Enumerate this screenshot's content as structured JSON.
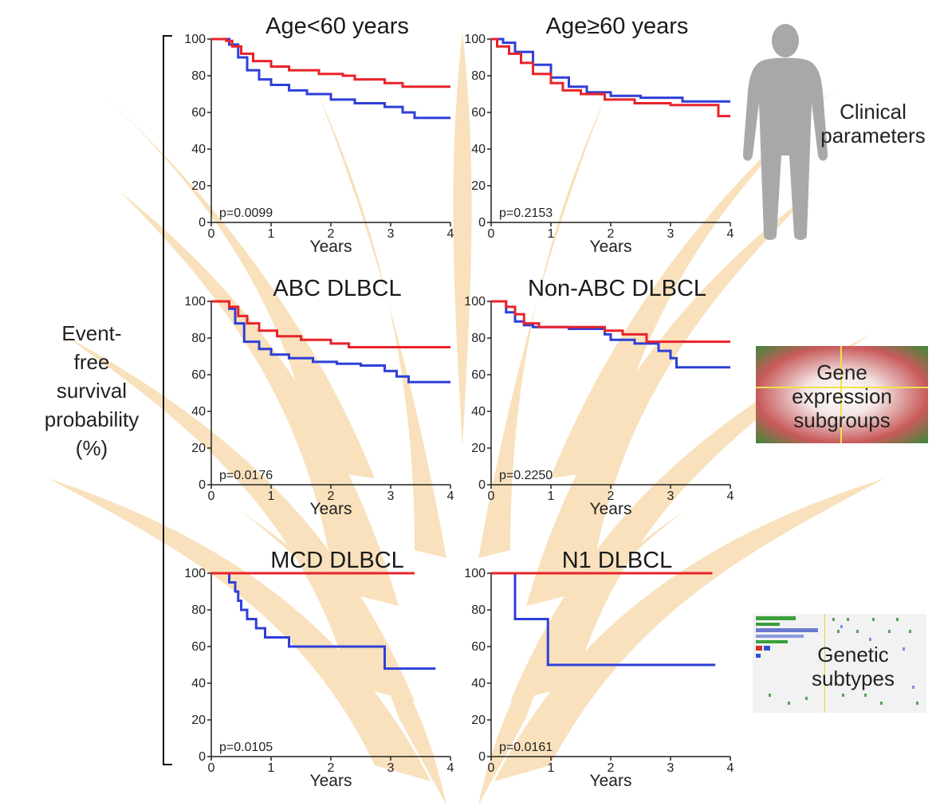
{
  "y_axis_label": [
    "Event-",
    "free",
    "survival",
    "probability",
    "(%)"
  ],
  "categories": {
    "clinical": [
      "Clinical",
      "parameters"
    ],
    "gene": [
      "Gene",
      "expression",
      "subgroups"
    ],
    "genetic": [
      "Genetic",
      "subtypes"
    ]
  },
  "colors": {
    "red": "#e8232a",
    "blue": "#2f3fd8",
    "bg_motif": "#f6d8a6"
  },
  "icons": {
    "clinical": "human-silhouette-icon",
    "gene": "expression-heatmap-icon",
    "genetic": "mutation-matrix-icon"
  },
  "chart_data": [
    {
      "type": "line",
      "step": true,
      "title": "Age<60 years",
      "xlabel": "Years",
      "ylabel": "",
      "xlim": [
        0,
        4
      ],
      "ylim": [
        0,
        100
      ],
      "xticks": [
        0,
        1,
        2,
        3,
        4
      ],
      "yticks": [
        0,
        20,
        40,
        60,
        80,
        100
      ],
      "annotation": "p=0.0099",
      "series": [
        {
          "color": "red",
          "x": [
            0,
            0.25,
            0.35,
            0.5,
            0.7,
            1.0,
            1.3,
            1.8,
            2.2,
            2.4,
            2.9,
            3.2,
            4.0
          ],
          "y": [
            100,
            99,
            96,
            92,
            88,
            85,
            83,
            81,
            80,
            78,
            76,
            74,
            74
          ]
        },
        {
          "color": "blue",
          "x": [
            0,
            0.3,
            0.45,
            0.6,
            0.8,
            1.0,
            1.3,
            1.6,
            2.0,
            2.4,
            2.9,
            3.2,
            3.4,
            4.0
          ],
          "y": [
            100,
            97,
            90,
            83,
            78,
            75,
            72,
            70,
            67,
            65,
            63,
            60,
            57,
            57
          ]
        }
      ]
    },
    {
      "type": "line",
      "step": true,
      "title": "Age≥60 years",
      "xlabel": "Years",
      "ylabel": "",
      "xlim": [
        0,
        4
      ],
      "ylim": [
        0,
        100
      ],
      "xticks": [
        0,
        1,
        2,
        3,
        4
      ],
      "yticks": [
        0,
        20,
        40,
        60,
        80,
        100
      ],
      "annotation": "p=0.2153",
      "series": [
        {
          "color": "red",
          "x": [
            0,
            0.1,
            0.3,
            0.5,
            0.7,
            1.0,
            1.2,
            1.5,
            1.9,
            2.4,
            3.0,
            3.8,
            4.0
          ],
          "y": [
            100,
            96,
            92,
            87,
            81,
            76,
            72,
            70,
            67,
            65,
            64,
            58,
            58
          ]
        },
        {
          "color": "blue",
          "x": [
            0,
            0.2,
            0.4,
            0.7,
            1.0,
            1.3,
            1.6,
            2.0,
            2.5,
            3.2,
            4.0
          ],
          "y": [
            100,
            98,
            93,
            86,
            79,
            74,
            71,
            69,
            68,
            66,
            66
          ]
        }
      ]
    },
    {
      "type": "line",
      "step": true,
      "title": "ABC DLBCL",
      "xlabel": "Years",
      "ylabel": "",
      "xlim": [
        0,
        4
      ],
      "ylim": [
        0,
        100
      ],
      "xticks": [
        0,
        1,
        2,
        3,
        4
      ],
      "yticks": [
        0,
        20,
        40,
        60,
        80,
        100
      ],
      "annotation": "p=0.0176",
      "series": [
        {
          "color": "red",
          "x": [
            0,
            0.3,
            0.45,
            0.6,
            0.8,
            1.1,
            1.5,
            2.0,
            2.3,
            4.0
          ],
          "y": [
            100,
            97,
            92,
            88,
            84,
            81,
            79,
            77,
            75,
            75
          ]
        },
        {
          "color": "blue",
          "x": [
            0,
            0.3,
            0.4,
            0.55,
            0.8,
            1.0,
            1.3,
            1.7,
            2.1,
            2.5,
            2.9,
            3.1,
            3.3,
            4.0
          ],
          "y": [
            100,
            96,
            88,
            78,
            74,
            71,
            69,
            67,
            66,
            65,
            62,
            59,
            56,
            56
          ]
        }
      ]
    },
    {
      "type": "line",
      "step": true,
      "title": "Non-ABC DLBCL",
      "xlabel": "Years",
      "ylabel": "",
      "xlim": [
        0,
        4
      ],
      "ylim": [
        0,
        100
      ],
      "xticks": [
        0,
        1,
        2,
        3,
        4
      ],
      "yticks": [
        0,
        20,
        40,
        60,
        80,
        100
      ],
      "annotation": "p=0.2250",
      "series": [
        {
          "color": "red",
          "x": [
            0,
            0.25,
            0.4,
            0.55,
            0.8,
            1.6,
            1.9,
            2.2,
            2.6,
            4.0
          ],
          "y": [
            100,
            97,
            93,
            88,
            86,
            86,
            84,
            82,
            78,
            78
          ]
        },
        {
          "color": "blue",
          "x": [
            0,
            0.25,
            0.4,
            0.55,
            0.7,
            1.3,
            1.9,
            2.0,
            2.4,
            2.8,
            3.0,
            3.1,
            4.0
          ],
          "y": [
            100,
            94,
            89,
            87,
            86,
            85,
            82,
            79,
            77,
            73,
            69,
            64,
            64
          ]
        }
      ]
    },
    {
      "type": "line",
      "step": true,
      "title": "MCD DLBCL",
      "xlabel": "Years",
      "ylabel": "",
      "xlim": [
        0,
        4
      ],
      "ylim": [
        0,
        100
      ],
      "xticks": [
        0,
        1,
        2,
        3,
        4
      ],
      "yticks": [
        0,
        20,
        40,
        60,
        80,
        100
      ],
      "annotation": "p=0.0105",
      "series": [
        {
          "color": "red",
          "x": [
            0,
            3.4
          ],
          "y": [
            100,
            100
          ]
        },
        {
          "color": "blue",
          "x": [
            0,
            0.3,
            0.4,
            0.45,
            0.5,
            0.6,
            0.75,
            0.9,
            1.1,
            1.3,
            2.9,
            3.75
          ],
          "y": [
            100,
            95,
            90,
            85,
            80,
            75,
            70,
            65,
            65,
            60,
            48,
            48
          ]
        }
      ]
    },
    {
      "type": "line",
      "step": true,
      "title": "N1 DLBCL",
      "xlabel": "Years",
      "ylabel": "",
      "xlim": [
        0,
        4
      ],
      "ylim": [
        0,
        100
      ],
      "xticks": [
        0,
        1,
        2,
        3,
        4
      ],
      "yticks": [
        0,
        20,
        40,
        60,
        80,
        100
      ],
      "annotation": "p=0.0161",
      "series": [
        {
          "color": "red",
          "x": [
            0,
            3.7
          ],
          "y": [
            100,
            100
          ]
        },
        {
          "color": "blue",
          "x": [
            0,
            0.4,
            0.95,
            3.75
          ],
          "y": [
            100,
            75,
            50,
            50
          ]
        }
      ]
    }
  ]
}
